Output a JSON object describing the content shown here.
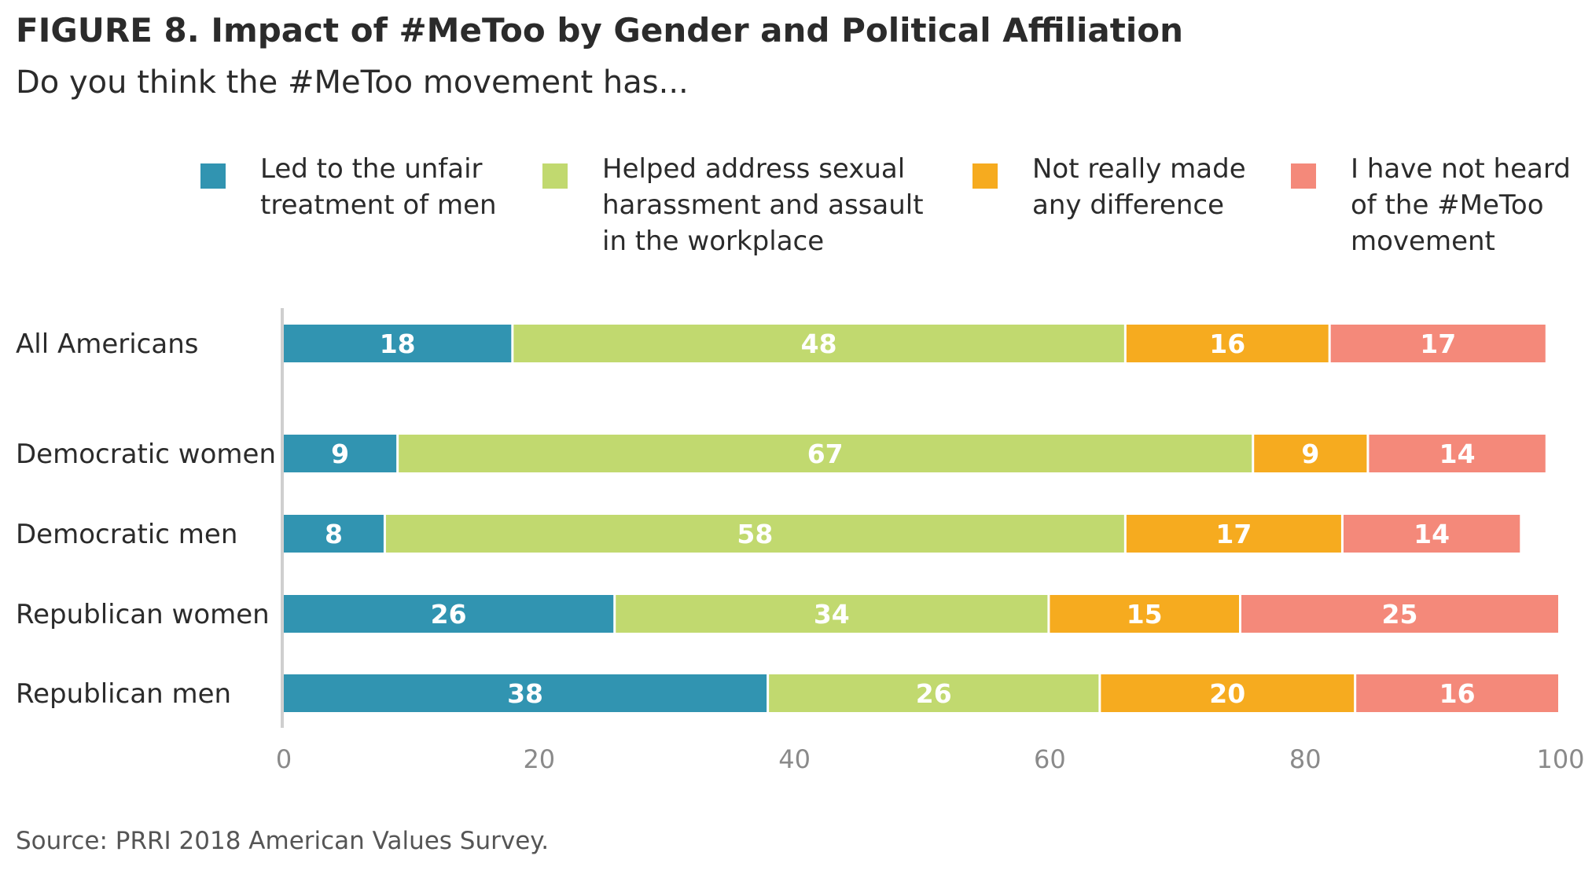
{
  "title": "FIGURE 8. Impact of #MeToo by Gender and Political Affiliation",
  "subtitle": "Do you think the #MeToo movement has...",
  "source": "Source: PRRI 2018 American Values Survey.",
  "legend": [
    {
      "lines": [
        "Led to the unfair",
        "treatment of men"
      ],
      "color": "#3194b1"
    },
    {
      "lines": [
        "Helped address sexual",
        "harassment and assault",
        "in the workplace"
      ],
      "color": "#c1d96f"
    },
    {
      "lines": [
        "Not really made",
        "any difference"
      ],
      "color": "#f6ab1f"
    },
    {
      "lines": [
        "I have not heard",
        "of the #MeToo",
        "movement"
      ],
      "color": "#f4897a"
    }
  ],
  "chart_data": {
    "type": "bar",
    "orientation": "horizontal",
    "stacked": true,
    "categories": [
      "All Americans",
      "Democratic women",
      "Democratic men",
      "Republican women",
      "Republican men"
    ],
    "series": [
      {
        "name": "Led to the unfair treatment of men",
        "color": "#3194b1",
        "values": [
          18,
          9,
          8,
          26,
          38
        ]
      },
      {
        "name": "Helped address sexual harassment and assault in the workplace",
        "color": "#c1d96f",
        "values": [
          48,
          67,
          58,
          34,
          26
        ]
      },
      {
        "name": "Not really made any difference",
        "color": "#f6ab1f",
        "values": [
          16,
          9,
          17,
          15,
          20
        ]
      },
      {
        "name": "I have not heard of the #MeToo movement",
        "color": "#f4897a",
        "values": [
          17,
          14,
          14,
          25,
          16
        ]
      }
    ],
    "xlim": [
      0,
      100
    ],
    "xticks": [
      0,
      20,
      40,
      60,
      80,
      100
    ],
    "grid": false,
    "legend_position": "top"
  }
}
